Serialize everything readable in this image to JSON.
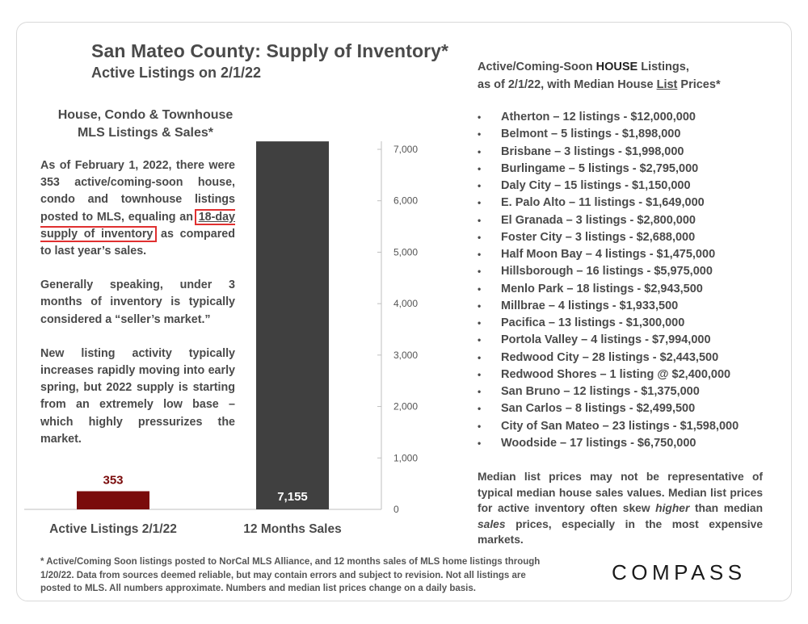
{
  "title": "San Mateo County: Supply of Inventory*",
  "subtitle": "Active Listings on 2/1/22",
  "chart_heading": [
    "House, Condo & Townhouse",
    "MLS Listings & Sales*"
  ],
  "chart_data": {
    "type": "bar",
    "categories": [
      "Active Listings 2/1/22",
      "12 Months Sales"
    ],
    "values": [
      353,
      7155
    ],
    "data_labels": [
      "353",
      "7,155"
    ],
    "colors": [
      "#7a0b0b",
      "#404040"
    ],
    "ylim": [
      0,
      7000
    ],
    "yticks": [
      0,
      1000,
      2000,
      3000,
      4000,
      5000,
      6000,
      7000
    ],
    "ytick_labels": [
      "0",
      "1,000",
      "2,000",
      "3,000",
      "4,000",
      "5,000",
      "6,000",
      "7,000"
    ],
    "y_axis_position": "right",
    "title": "House, Condo & Townhouse MLS Listings & Sales*"
  },
  "overlay": {
    "p1_before": "As of February 1, 2022, there were 353 active/coming-soon house, condo and townhouse listings posted to MLS, equaling an ",
    "p1_boxed_underlined": "18-day",
    "p1_boxed_rest": " supply of inventory",
    "p1_after": " as compared to last year’s sales.",
    "p2": "Generally speaking, under 3 months of inventory is typically considered a “seller’s market.”",
    "p3": "New listing activity typically increases rapidly moving into early spring, but 2022 supply is starting from an extremely low base – which highly pressurizes the market."
  },
  "right_header": {
    "line1_a": "Active/Coming-Soon ",
    "line1_b": "HOUSE",
    "line1_c": " Listings,",
    "line2_a": "as of 2/1/22, with Median House ",
    "line2_b": "List",
    "line2_c": " Prices*"
  },
  "bullet_char": "•",
  "listings": [
    "Atherton – 12 listings - $12,000,000",
    "Belmont – 5 listings - $1,898,000",
    "Brisbane – 3 listings - $1,998,000",
    "Burlingame – 5 listings - $2,795,000",
    "Daly City – 15 listings - $1,150,000",
    "E. Palo Alto – 11 listings - $1,649,000",
    "El Granada – 3 listings - $2,800,000",
    "Foster City – 3 listings - $2,688,000",
    "Half Moon Bay – 4 listings - $1,475,000",
    "Hillsborough – 16 listings - $5,975,000",
    "Menlo Park – 18 listings - $2,943,500",
    "Millbrae – 4 listings - $1,933,500",
    "Pacifica – 13 listings - $1,300,000",
    "Portola Valley – 4 listings - $7,994,000",
    "Redwood City – 28 listings - $2,443,500",
    "Redwood Shores – 1 listing @ $2,400,000",
    "San Bruno – 12 listings - $1,375,000",
    "San Carlos – 8 listings - $2,499,500",
    "City of San Mateo – 23 listings - $1,598,000",
    "Woodside – 17 listings - $6,750,000"
  ],
  "note": {
    "a": "Median list prices may not be representative of typical median house sales values. Median list prices for active inventory often skew ",
    "b": "higher",
    "c": " than median ",
    "d": "sales",
    "e": " prices, especially in the most expensive markets."
  },
  "footer": "* Active/Coming Soon listings posted to NorCal MLS Alliance, and 12 months sales of MLS home listings through 1/20/22. Data from sources deemed reliable, but may contain errors and subject to revision. Not all listings are posted to MLS. All numbers approximate. Numbers and median list prices change on a daily basis.",
  "logo": "COMPASS"
}
